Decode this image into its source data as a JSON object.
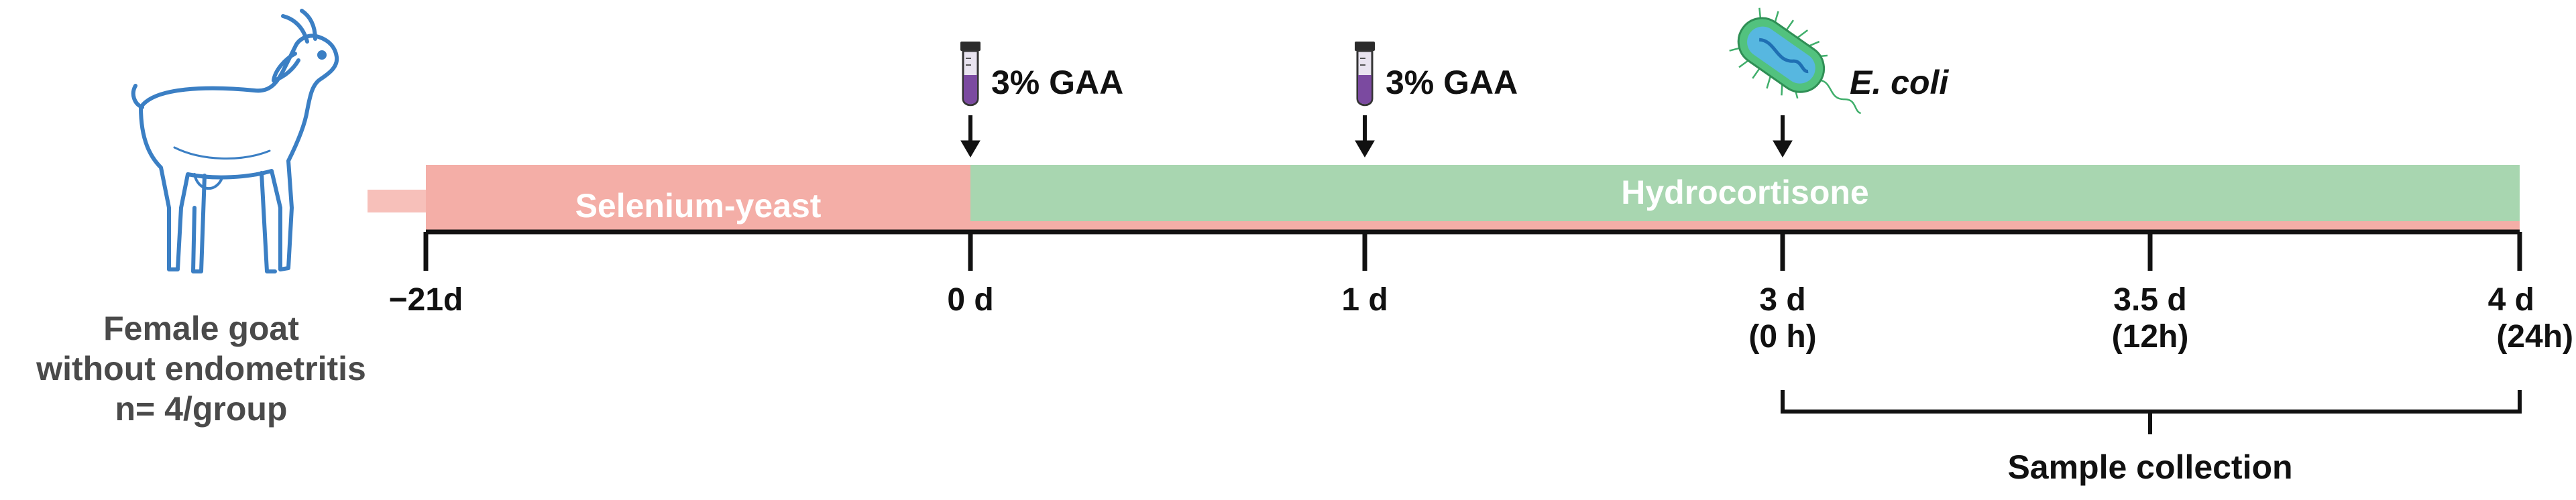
{
  "goat": {
    "caption_line1": "Female goat",
    "caption_line2": "without endometritis",
    "caption_line3": "n= 4/group",
    "icon": "goat-icon",
    "stroke_color": "#3b7fc4"
  },
  "timeline": {
    "selenium_label": "Selenium-yeast",
    "hydrocortisone_label": "Hydrocortisone",
    "selenium_color": "#f4aea7",
    "hydrocortisone_color": "#a8d6b0",
    "arrow_color": "#f4aea7",
    "ticks": [
      {
        "line1": "−21d",
        "line2": ""
      },
      {
        "line1": "0 d",
        "line2": ""
      },
      {
        "line1": "1 d",
        "line2": ""
      },
      {
        "line1": "3 d",
        "line2": "(0 h)"
      },
      {
        "line1": "3.5 d",
        "line2": "(12h)"
      },
      {
        "line1": "4 d",
        "line2": "(24h)"
      }
    ]
  },
  "treatments": [
    {
      "label": "3% GAA",
      "icon": "test-tube-icon"
    },
    {
      "label": "3% GAA",
      "icon": "test-tube-icon"
    },
    {
      "label": "E. coli",
      "icon": "bacterium-icon"
    }
  ],
  "sample_collection_label": "Sample collection"
}
